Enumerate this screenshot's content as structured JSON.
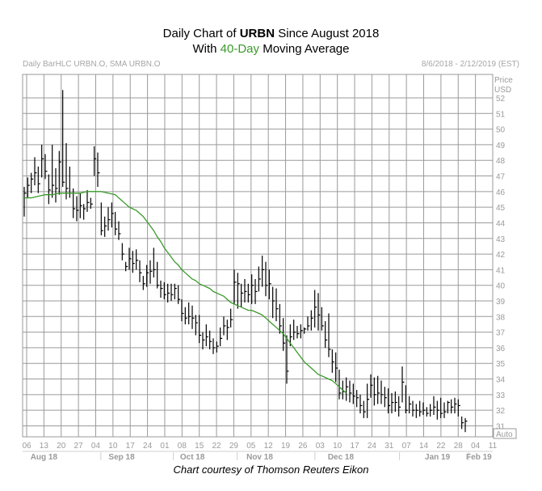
{
  "title": {
    "line1_prefix": "Daily Chart of ",
    "line1_ticker": "URBN",
    "line1_suffix": " Since August 2018",
    "line2_prefix": "With ",
    "line2_highlight": "40-Day",
    "line2_suffix": " Moving Average"
  },
  "header_left": "Daily BarHLC URBN.O, SMA URBN.O",
  "header_right": "8/6/2018 - 2/12/2019 (EST)",
  "credit": "Chart courtesy of Thomson Reuters Eikon",
  "colors": {
    "bars": "#000000",
    "sma": "#3a9a2a",
    "grid": "#9a9a9a",
    "axis_text": "#9a9a9a"
  },
  "chart_data": {
    "type": "bar",
    "subtype": "daily-hlc-bars-with-sma",
    "y_axis_title": [
      "Price",
      "USD"
    ],
    "ylim": [
      30.3,
      53.5
    ],
    "y_ticks": [
      31,
      32,
      33,
      34,
      35,
      36,
      37,
      38,
      39,
      40,
      41,
      42,
      43,
      44,
      45,
      46,
      47,
      48,
      49,
      50,
      51,
      52
    ],
    "x_ticks": [
      "06",
      "13",
      "20",
      "27",
      "04",
      "10",
      "17",
      "24",
      "01",
      "08",
      "15",
      "22",
      "29",
      "05",
      "12",
      "19",
      "26",
      "03",
      "10",
      "17",
      "24",
      "31",
      "07",
      "14",
      "22",
      "28",
      "04",
      "11"
    ],
    "x_months": [
      {
        "label": "Aug 18",
        "tick": 1
      },
      {
        "label": "Sep 18",
        "tick": 5.5
      },
      {
        "label": "Oct 18",
        "tick": 9.6
      },
      {
        "label": "Nov 18",
        "tick": 13.5
      },
      {
        "label": "Dec 18",
        "tick": 18.2
      },
      {
        "label": "Jan 19",
        "tick": 23.8
      },
      {
        "label": "Feb 19",
        "tick": 26.2
      }
    ],
    "auto_label": "Auto",
    "series": [
      {
        "name": "URBN.O",
        "kind": "hlc",
        "dates": [
          "08-06",
          "08-07",
          "08-08",
          "08-09",
          "08-10",
          "08-13",
          "08-14",
          "08-15",
          "08-16",
          "08-17",
          "08-20",
          "08-21",
          "08-22",
          "08-23",
          "08-24",
          "08-27",
          "08-28",
          "08-29",
          "08-30",
          "08-31",
          "09-04",
          "09-05",
          "09-06",
          "09-07",
          "09-10",
          "09-11",
          "09-12",
          "09-13",
          "09-14",
          "09-17",
          "09-18",
          "09-19",
          "09-20",
          "09-21",
          "09-24",
          "09-25",
          "09-26",
          "09-27",
          "09-28",
          "10-01",
          "10-02",
          "10-03",
          "10-04",
          "10-05",
          "10-08",
          "10-09",
          "10-10",
          "10-11",
          "10-12",
          "10-15",
          "10-16",
          "10-17",
          "10-18",
          "10-19",
          "10-22",
          "10-23",
          "10-24",
          "10-25",
          "10-26",
          "10-29",
          "10-30",
          "10-31",
          "11-01",
          "11-02",
          "11-05",
          "11-06",
          "11-07",
          "11-08",
          "11-09",
          "11-12",
          "11-13",
          "11-14",
          "11-15",
          "11-16",
          "11-19",
          "11-20",
          "11-21",
          "11-23",
          "11-26",
          "11-27",
          "11-28",
          "11-29",
          "11-30",
          "12-03",
          "12-04",
          "12-06",
          "12-07",
          "12-10",
          "12-11",
          "12-12",
          "12-13",
          "12-14",
          "12-17",
          "12-18",
          "12-19",
          "12-20",
          "12-21",
          "12-24",
          "12-26",
          "12-27",
          "12-28",
          "12-31",
          "01-02",
          "01-03",
          "01-04",
          "01-07",
          "01-08",
          "01-09",
          "01-10",
          "01-11",
          "01-14",
          "01-15",
          "01-16",
          "01-17",
          "01-18",
          "01-22",
          "01-23",
          "01-24",
          "01-25",
          "01-28",
          "01-29",
          "01-30",
          "01-31",
          "02-01",
          "02-04",
          "02-05",
          "02-06"
        ],
        "high": [
          46.3,
          46.9,
          47.2,
          48.2,
          47.6,
          49.0,
          48.4,
          47.1,
          49.0,
          47.5,
          48.6,
          52.5,
          49.1,
          47.6,
          46.2,
          45.7,
          45.9,
          45.2,
          46.1,
          45.6,
          48.9,
          48.5,
          45.3,
          44.4,
          45.0,
          45.3,
          44.7,
          44.1,
          42.7,
          41.5,
          42.4,
          42.2,
          42.3,
          41.6,
          40.6,
          41.3,
          41.6,
          42.4,
          41.5,
          40.3,
          40.2,
          40.1,
          40.1,
          40.1,
          40.0,
          39.1,
          38.6,
          38.9,
          38.7,
          38.1,
          38.1,
          37.0,
          37.5,
          37.1,
          36.6,
          36.4,
          37.3,
          38.0,
          37.8,
          38.5,
          41.0,
          40.8,
          40.1,
          40.4,
          40.1,
          40.7,
          40.4,
          41.2,
          41.9,
          41.5,
          41.0,
          39.9,
          39.8,
          38.8,
          37.9,
          36.8,
          37.5,
          37.8,
          37.4,
          37.5,
          37.3,
          38.0,
          38.4,
          39.7,
          39.5,
          38.6,
          37.7,
          38.2,
          35.9,
          35.7,
          34.6,
          33.9,
          34.1,
          33.9,
          33.7,
          33.3,
          33.0,
          32.6,
          33.7,
          34.3,
          34.1,
          34.2,
          33.9,
          33.5,
          33.4,
          33.1,
          33.2,
          32.9,
          34.8,
          33.6,
          32.9,
          32.6,
          32.4,
          32.6,
          32.5,
          32.2,
          32.4,
          32.9,
          32.6,
          32.8,
          32.5,
          32.6,
          32.7,
          32.8,
          32.7,
          31.6,
          31.5
        ],
        "low": [
          44.4,
          45.6,
          45.9,
          46.4,
          45.9,
          46.9,
          46.8,
          45.2,
          45.6,
          45.3,
          45.8,
          46.3,
          45.5,
          45.6,
          44.3,
          44.1,
          44.3,
          44.2,
          44.7,
          44.9,
          47.0,
          46.3,
          43.2,
          43.1,
          43.5,
          43.7,
          43.2,
          42.9,
          41.6,
          40.9,
          41.0,
          40.8,
          41.0,
          40.2,
          39.7,
          39.9,
          40.1,
          40.5,
          39.8,
          39.2,
          39.1,
          38.9,
          39.0,
          39.1,
          38.8,
          37.7,
          37.5,
          37.5,
          37.2,
          36.8,
          36.3,
          35.9,
          36.1,
          35.9,
          35.6,
          35.7,
          36.1,
          36.8,
          36.5,
          37.3,
          38.8,
          38.5,
          38.6,
          38.9,
          38.9,
          38.8,
          38.8,
          39.6,
          39.9,
          39.3,
          39.1,
          37.9,
          37.7,
          36.9,
          35.8,
          33.7,
          36.1,
          36.5,
          36.6,
          36.6,
          36.9,
          37.1,
          37.1,
          37.3,
          37.1,
          37.1,
          36.0,
          35.4,
          34.4,
          33.8,
          32.7,
          32.7,
          32.6,
          32.5,
          32.4,
          32.2,
          31.8,
          31.5,
          31.5,
          32.8,
          32.3,
          32.4,
          32.4,
          32.2,
          31.8,
          31.8,
          31.9,
          31.6,
          32.5,
          31.8,
          31.8,
          31.6,
          31.5,
          31.6,
          31.7,
          31.6,
          31.6,
          31.7,
          31.4,
          31.5,
          31.5,
          31.8,
          31.8,
          31.8,
          31.6,
          30.8,
          30.6
        ],
        "close": [
          45.9,
          46.4,
          46.8,
          47.2,
          46.5,
          48.1,
          47.3,
          46.1,
          46.4,
          46.2,
          47.9,
          46.6,
          46.2,
          45.9,
          44.9,
          44.8,
          45.1,
          44.9,
          45.3,
          45.2,
          48.1,
          47.2,
          43.5,
          43.8,
          44.2,
          44.6,
          43.6,
          43.3,
          42.0,
          41.2,
          41.7,
          41.4,
          41.6,
          40.8,
          40.1,
          40.8,
          40.9,
          41.0,
          40.0,
          39.8,
          39.4,
          39.5,
          39.4,
          39.8,
          39.1,
          38.2,
          37.9,
          38.0,
          37.9,
          37.6,
          36.8,
          36.5,
          36.7,
          36.4,
          36.0,
          36.1,
          36.6,
          37.4,
          37.3,
          37.8,
          40.2,
          40.1,
          39.5,
          39.6,
          39.4,
          40.0,
          39.6,
          40.4,
          41.0,
          40.0,
          40.1,
          39.0,
          38.5,
          37.4,
          36.3,
          34.5,
          36.7,
          37.0,
          36.9,
          37.1,
          37.2,
          37.4,
          37.9,
          38.6,
          38.1,
          37.4,
          36.5,
          35.9,
          35.1,
          34.7,
          33.1,
          33.2,
          33.5,
          33.1,
          32.9,
          32.8,
          32.3,
          31.9,
          32.7,
          33.6,
          33.0,
          33.1,
          33.0,
          32.8,
          32.3,
          32.5,
          32.5,
          32.2,
          33.8,
          32.0,
          32.4,
          32.0,
          32.0,
          31.9,
          32.0,
          31.8,
          32.0,
          32.2,
          32.0,
          31.8,
          31.9,
          32.5,
          32.2,
          32.4,
          32.3,
          31.2,
          31.3
        ]
      },
      {
        "name": "SMA (40)",
        "kind": "line",
        "points": [
          [
            0,
            45.6
          ],
          [
            2,
            45.6
          ],
          [
            4,
            45.7
          ],
          [
            6,
            45.8
          ],
          [
            8,
            45.8
          ],
          [
            10,
            45.9
          ],
          [
            12,
            45.9
          ],
          [
            14,
            45.9
          ],
          [
            16,
            45.9
          ],
          [
            18,
            46.0
          ],
          [
            20,
            46.0
          ],
          [
            22,
            46.0
          ],
          [
            24,
            45.9
          ],
          [
            26,
            45.8
          ],
          [
            27,
            45.6
          ],
          [
            28,
            45.4
          ],
          [
            29,
            45.2
          ],
          [
            30,
            45.0
          ],
          [
            31,
            44.9
          ],
          [
            32,
            44.8
          ],
          [
            33,
            44.6
          ],
          [
            34,
            44.4
          ],
          [
            35,
            44.1
          ],
          [
            36,
            43.8
          ],
          [
            37,
            43.5
          ],
          [
            38,
            43.1
          ],
          [
            39,
            42.8
          ],
          [
            40,
            42.4
          ],
          [
            41,
            42.1
          ],
          [
            42,
            41.8
          ],
          [
            43,
            41.5
          ],
          [
            44,
            41.3
          ],
          [
            45,
            41.0
          ],
          [
            46,
            40.8
          ],
          [
            47,
            40.6
          ],
          [
            48,
            40.4
          ],
          [
            49,
            40.3
          ],
          [
            50,
            40.1
          ],
          [
            51,
            40.0
          ],
          [
            52,
            39.9
          ],
          [
            53,
            39.8
          ],
          [
            54,
            39.6
          ],
          [
            55,
            39.5
          ],
          [
            56,
            39.4
          ],
          [
            57,
            39.3
          ],
          [
            58,
            39.1
          ],
          [
            59,
            38.9
          ],
          [
            60,
            38.8
          ],
          [
            61,
            38.7
          ],
          [
            62,
            38.6
          ],
          [
            63,
            38.5
          ],
          [
            64,
            38.4
          ],
          [
            65,
            38.4
          ],
          [
            66,
            38.3
          ],
          [
            67,
            38.2
          ],
          [
            68,
            38.1
          ],
          [
            69,
            37.9
          ],
          [
            70,
            37.7
          ],
          [
            71,
            37.5
          ],
          [
            72,
            37.3
          ],
          [
            73,
            37.1
          ],
          [
            74,
            36.9
          ],
          [
            75,
            36.6
          ],
          [
            76,
            36.3
          ],
          [
            77,
            36.0
          ],
          [
            78,
            35.7
          ],
          [
            79,
            35.4
          ],
          [
            80,
            35.1
          ],
          [
            81,
            34.9
          ],
          [
            82,
            34.7
          ],
          [
            83,
            34.5
          ],
          [
            84,
            34.3
          ],
          [
            85,
            34.2
          ],
          [
            86,
            34.1
          ],
          [
            87,
            34.0
          ],
          [
            88,
            33.9
          ],
          [
            89,
            33.7
          ],
          [
            90,
            33.5
          ],
          [
            91,
            33.3
          ],
          [
            92,
            33.1
          ]
        ]
      }
    ]
  }
}
